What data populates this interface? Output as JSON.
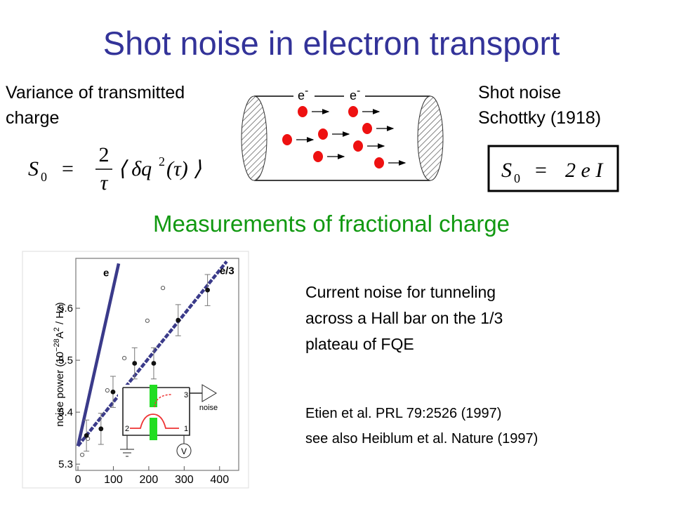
{
  "title": "Shot noise in electron transport",
  "left_caption": [
    "Variance of transmitted",
    "charge"
  ],
  "right_caption": [
    "Shot noise",
    "Schottky (1918)"
  ],
  "formula_variance": {
    "symbol": "S",
    "sub": "0",
    "equals": "=",
    "numerator": "2",
    "denominator": "τ",
    "body": "⟨ δq",
    "power": "2",
    "tail": "(τ) ⟩"
  },
  "formula_shot": {
    "symbol": "S",
    "sub": "0",
    "equals": "=",
    "body": "2 e I"
  },
  "electron_label": {
    "base": "e",
    "sup": "-"
  },
  "subtitle": "Measurements of fractional charge",
  "description": [
    "Current noise for tunneling",
    "across a Hall bar on the 1/3",
    "plateau of FQE"
  ],
  "references": [
    "Etien et al. PRL 79:2526 (1997)",
    "see also Heiblum et al. Nature (1997)"
  ],
  "figure": {
    "type": "scatter",
    "ylabel": {
      "text": "noise power (10",
      "exp": "−28",
      "unit": "A",
      "unit_power": "2",
      "tail": " / Hz)"
    },
    "xlim": [
      -6,
      454
    ],
    "ylim": [
      5.288,
      5.696
    ],
    "xticks": [
      0,
      100,
      200,
      300,
      400
    ],
    "yticks": [
      5.3,
      5.4,
      5.5,
      5.6
    ],
    "filled_points": {
      "x": [
        24,
        65,
        99,
        160,
        214,
        283,
        366
      ],
      "values": [
        5.355,
        5.368,
        5.439,
        5.494,
        5.494,
        5.577,
        5.635
      ],
      "errors": [
        0.03,
        0.03,
        0.03,
        0.03,
        0.03,
        0.03,
        0.03
      ],
      "color": "#111111"
    },
    "open_points": {
      "x": [
        12,
        28,
        83,
        131,
        196,
        240
      ],
      "values": [
        5.318,
        5.349,
        5.442,
        5.504,
        5.576,
        5.639
      ],
      "color": "#555555"
    },
    "lines": [
      {
        "name": "e",
        "x": [
          0,
          115
        ],
        "values": [
          5.335,
          5.686
        ],
        "color": "#3a3a8a"
      },
      {
        "name": "e/3",
        "x": [
          0,
          420
        ],
        "values": [
          5.335,
          5.69
        ],
        "color": "#3a3a8a"
      }
    ],
    "inset": {
      "noise": "noise",
      "meter": "V",
      "ports": [
        "1",
        "2",
        "3"
      ]
    }
  }
}
